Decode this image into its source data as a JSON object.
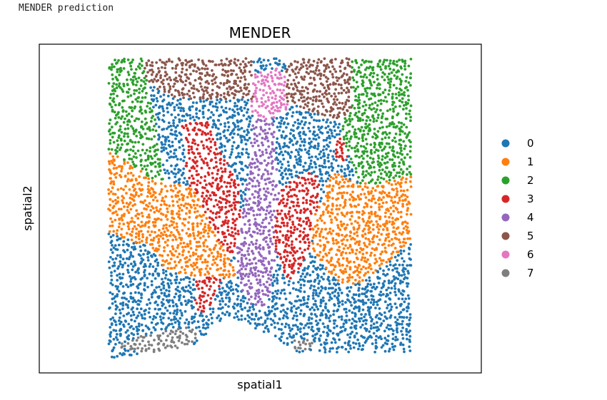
{
  "cell_output": "MENDER prediction",
  "chart_data": {
    "type": "scatter",
    "title": "MENDER",
    "xlabel": "spatial1",
    "ylabel": "spatial2",
    "grid": false,
    "ticks_visible": false,
    "legend_placement": "right",
    "xlim": [
      0,
      100
    ],
    "ylim": [
      0,
      100
    ],
    "series": [
      {
        "name": "0",
        "color": "#1f77b4"
      },
      {
        "name": "1",
        "color": "#ff7f0e"
      },
      {
        "name": "2",
        "color": "#2ca02c"
      },
      {
        "name": "3",
        "color": "#d62728"
      },
      {
        "name": "4",
        "color": "#9467bd"
      },
      {
        "name": "5",
        "color": "#8c564b"
      },
      {
        "name": "6",
        "color": "#e377c2"
      },
      {
        "name": "7",
        "color": "#7f7f7f"
      }
    ],
    "regions": [
      {
        "cluster": "5",
        "polygon": [
          [
            10,
            96
          ],
          [
            44,
            96
          ],
          [
            44,
            83
          ],
          [
            30,
            83
          ],
          [
            20,
            83
          ],
          [
            12,
            88
          ]
        ]
      },
      {
        "cluster": "5",
        "polygon": [
          [
            54,
            96
          ],
          [
            74,
            96
          ],
          [
            74,
            80
          ],
          [
            70,
            76
          ],
          [
            54,
            82
          ]
        ]
      },
      {
        "cluster": "6",
        "polygon": [
          [
            44,
            91
          ],
          [
            52,
            93
          ],
          [
            56,
            86
          ],
          [
            54,
            78
          ],
          [
            48,
            76
          ],
          [
            42,
            80
          ]
        ]
      },
      {
        "cluster": "2",
        "polygon": [
          [
            0,
            96
          ],
          [
            10,
            96
          ],
          [
            12,
            88
          ],
          [
            14,
            78
          ],
          [
            16,
            64
          ],
          [
            18,
            56
          ],
          [
            14,
            57
          ],
          [
            0,
            67
          ]
        ]
      },
      {
        "cluster": "2",
        "polygon": [
          [
            74,
            96
          ],
          [
            92,
            96
          ],
          [
            92,
            59
          ],
          [
            82,
            56
          ],
          [
            76,
            56
          ],
          [
            72,
            68
          ],
          [
            70,
            76
          ]
        ]
      },
      {
        "cluster": "1",
        "polygon": [
          [
            0,
            67
          ],
          [
            14,
            57
          ],
          [
            18,
            56
          ],
          [
            22,
            56
          ],
          [
            26,
            54
          ],
          [
            32,
            40
          ],
          [
            40,
            26
          ],
          [
            26,
            26
          ],
          [
            18,
            28
          ],
          [
            12,
            36
          ],
          [
            0,
            40
          ]
        ]
      },
      {
        "cluster": "1",
        "polygon": [
          [
            92,
            59
          ],
          [
            82,
            56
          ],
          [
            76,
            56
          ],
          [
            68,
            60
          ],
          [
            62,
            44
          ],
          [
            62,
            34
          ],
          [
            70,
            24
          ],
          [
            76,
            24
          ],
          [
            84,
            30
          ],
          [
            92,
            38
          ]
        ]
      },
      {
        "cluster": "3",
        "polygon": [
          [
            22,
            76
          ],
          [
            30,
            76
          ],
          [
            34,
            66
          ],
          [
            40,
            56
          ],
          [
            40,
            40
          ],
          [
            34,
            24
          ],
          [
            30,
            14
          ],
          [
            26,
            16
          ],
          [
            28,
            40
          ],
          [
            24,
            56
          ]
        ]
      },
      {
        "cluster": "3",
        "polygon": [
          [
            60,
            60
          ],
          [
            64,
            58
          ],
          [
            64,
            48
          ],
          [
            62,
            38
          ],
          [
            58,
            28
          ],
          [
            54,
            24
          ],
          [
            50,
            38
          ],
          [
            52,
            54
          ]
        ]
      },
      {
        "cluster": "3",
        "polygon": [
          [
            68,
            68
          ],
          [
            72,
            72
          ],
          [
            74,
            66
          ],
          [
            70,
            62
          ]
        ]
      },
      {
        "cluster": "4",
        "polygon": [
          [
            44,
            78
          ],
          [
            50,
            76
          ],
          [
            52,
            54
          ],
          [
            52,
            40
          ],
          [
            50,
            26
          ],
          [
            48,
            16
          ],
          [
            42,
            18
          ],
          [
            38,
            30
          ],
          [
            40,
            40
          ],
          [
            42,
            56
          ]
        ]
      },
      {
        "cluster": "7",
        "polygon": [
          [
            2,
            4
          ],
          [
            10,
            2
          ],
          [
            22,
            2
          ],
          [
            28,
            8
          ],
          [
            24,
            10
          ],
          [
            12,
            8
          ]
        ]
      },
      {
        "cluster": "7",
        "polygon": [
          [
            56,
            6
          ],
          [
            62,
            6
          ],
          [
            62,
            3
          ],
          [
            56,
            3
          ]
        ]
      }
    ],
    "background_cluster": "0",
    "domain": [
      [
        0,
        96
      ],
      [
        92,
        96
      ],
      [
        92,
        2
      ],
      [
        58,
        2
      ],
      [
        44,
        10
      ],
      [
        36,
        14
      ],
      [
        26,
        4
      ],
      [
        0,
        0
      ]
    ]
  }
}
